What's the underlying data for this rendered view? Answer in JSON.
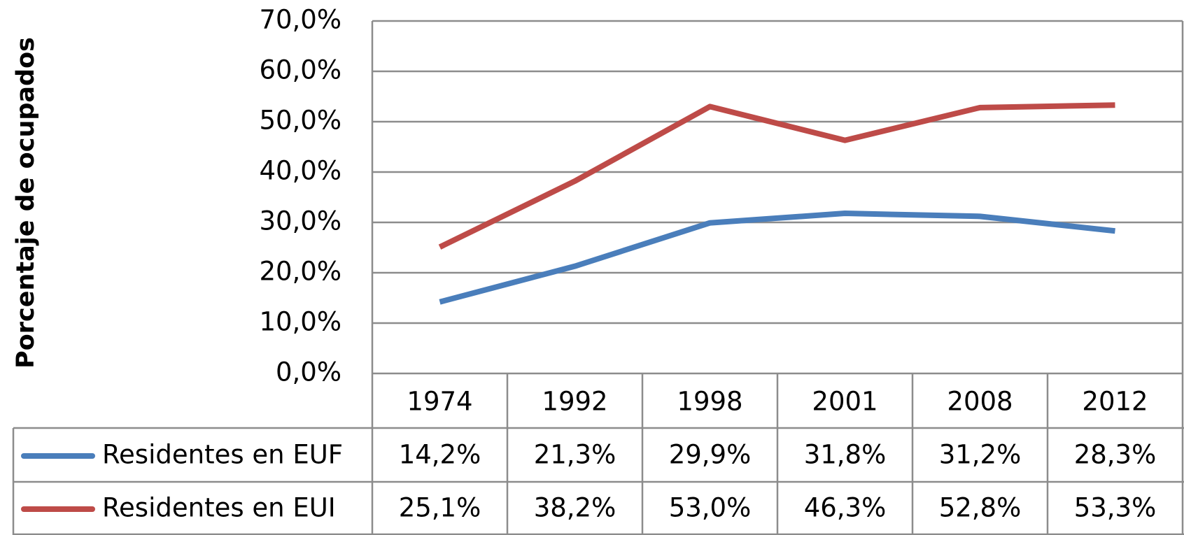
{
  "chart_data": {
    "type": "line",
    "y_label": "Porcentaje de ocupados",
    "categories": [
      "1974",
      "1992",
      "1998",
      "2001",
      "2008",
      "2012"
    ],
    "series": [
      {
        "name": "Residentes en EUF",
        "color": "#4a7ebb",
        "values": [
          14.2,
          21.3,
          29.9,
          31.8,
          31.2,
          28.3
        ],
        "value_labels": [
          "14,2%",
          "21,3%",
          "29,9%",
          "31,8%",
          "31,2%",
          "28,3%"
        ]
      },
      {
        "name": "Residentes en EUI",
        "color": "#be4b48",
        "values": [
          25.1,
          38.2,
          53.0,
          46.3,
          52.8,
          53.3
        ],
        "value_labels": [
          "25,1%",
          "38,2%",
          "53,0%",
          "46,3%",
          "52,8%",
          "53,3%"
        ]
      }
    ],
    "ylim": [
      0,
      70
    ],
    "yticks": [
      {
        "value": 0,
        "label": "0,0%"
      },
      {
        "value": 10,
        "label": "10,0%"
      },
      {
        "value": 20,
        "label": "20,0%"
      },
      {
        "value": 30,
        "label": "30,0%"
      },
      {
        "value": 40,
        "label": "40,0%"
      },
      {
        "value": 50,
        "label": "50,0%"
      },
      {
        "value": 60,
        "label": "60,0%"
      },
      {
        "value": 70,
        "label": "70,0%"
      }
    ],
    "grid": true
  }
}
